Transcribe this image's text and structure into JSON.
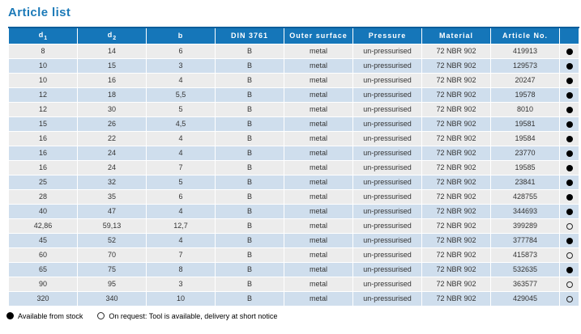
{
  "title": "Article list",
  "colors": {
    "title_text": "#1c7ab8",
    "header_bg": "#1576b9",
    "header_top_border": "#0c5e9b",
    "header_text": "#ffffff",
    "row_gray": "#ececec",
    "row_blue": "#cfdeed",
    "body_text": "#333333"
  },
  "table": {
    "headers": [
      {
        "label": "d",
        "sub": "1"
      },
      {
        "label": "d",
        "sub": "2"
      },
      {
        "label": "b"
      },
      {
        "label": "DIN 3761"
      },
      {
        "label": "Outer surface"
      },
      {
        "label": "Pressure"
      },
      {
        "label": "Material"
      },
      {
        "label": "Article No."
      },
      {
        "label": ""
      }
    ],
    "rows": [
      {
        "d1": "8",
        "d2": "14",
        "b": "6",
        "din": "B",
        "outer_surface": "metal",
        "pressure": "un-pressurised",
        "material": "72 NBR 902",
        "article_no": "419913",
        "availability": "stock"
      },
      {
        "d1": "10",
        "d2": "15",
        "b": "3",
        "din": "B",
        "outer_surface": "metal",
        "pressure": "un-pressurised",
        "material": "72 NBR 902",
        "article_no": "129573",
        "availability": "stock"
      },
      {
        "d1": "10",
        "d2": "16",
        "b": "4",
        "din": "B",
        "outer_surface": "metal",
        "pressure": "un-pressurised",
        "material": "72 NBR 902",
        "article_no": "20247",
        "availability": "stock"
      },
      {
        "d1": "12",
        "d2": "18",
        "b": "5,5",
        "din": "B",
        "outer_surface": "metal",
        "pressure": "un-pressurised",
        "material": "72 NBR 902",
        "article_no": "19578",
        "availability": "stock"
      },
      {
        "d1": "12",
        "d2": "30",
        "b": "5",
        "din": "B",
        "outer_surface": "metal",
        "pressure": "un-pressurised",
        "material": "72 NBR 902",
        "article_no": "8010",
        "availability": "stock"
      },
      {
        "d1": "15",
        "d2": "26",
        "b": "4,5",
        "din": "B",
        "outer_surface": "metal",
        "pressure": "un-pressurised",
        "material": "72 NBR 902",
        "article_no": "19581",
        "availability": "stock"
      },
      {
        "d1": "16",
        "d2": "22",
        "b": "4",
        "din": "B",
        "outer_surface": "metal",
        "pressure": "un-pressurised",
        "material": "72 NBR 902",
        "article_no": "19584",
        "availability": "stock"
      },
      {
        "d1": "16",
        "d2": "24",
        "b": "4",
        "din": "B",
        "outer_surface": "metal",
        "pressure": "un-pressurised",
        "material": "72 NBR 902",
        "article_no": "23770",
        "availability": "stock"
      },
      {
        "d1": "16",
        "d2": "24",
        "b": "7",
        "din": "B",
        "outer_surface": "metal",
        "pressure": "un-pressurised",
        "material": "72 NBR 902",
        "article_no": "19585",
        "availability": "stock"
      },
      {
        "d1": "25",
        "d2": "32",
        "b": "5",
        "din": "B",
        "outer_surface": "metal",
        "pressure": "un-pressurised",
        "material": "72 NBR 902",
        "article_no": "23841",
        "availability": "stock"
      },
      {
        "d1": "28",
        "d2": "35",
        "b": "6",
        "din": "B",
        "outer_surface": "metal",
        "pressure": "un-pressurised",
        "material": "72 NBR 902",
        "article_no": "428755",
        "availability": "stock"
      },
      {
        "d1": "40",
        "d2": "47",
        "b": "4",
        "din": "B",
        "outer_surface": "metal",
        "pressure": "un-pressurised",
        "material": "72 NBR 902",
        "article_no": "344693",
        "availability": "stock"
      },
      {
        "d1": "42,86",
        "d2": "59,13",
        "b": "12,7",
        "din": "B",
        "outer_surface": "metal",
        "pressure": "un-pressurised",
        "material": "72 NBR 902",
        "article_no": "399289",
        "availability": "request"
      },
      {
        "d1": "45",
        "d2": "52",
        "b": "4",
        "din": "B",
        "outer_surface": "metal",
        "pressure": "un-pressurised",
        "material": "72 NBR 902",
        "article_no": "377784",
        "availability": "stock"
      },
      {
        "d1": "60",
        "d2": "70",
        "b": "7",
        "din": "B",
        "outer_surface": "metal",
        "pressure": "un-pressurised",
        "material": "72 NBR 902",
        "article_no": "415873",
        "availability": "request"
      },
      {
        "d1": "65",
        "d2": "75",
        "b": "8",
        "din": "B",
        "outer_surface": "metal",
        "pressure": "un-pressurised",
        "material": "72 NBR 902",
        "article_no": "532635",
        "availability": "stock"
      },
      {
        "d1": "90",
        "d2": "95",
        "b": "3",
        "din": "B",
        "outer_surface": "metal",
        "pressure": "un-pressurised",
        "material": "72 NBR 902",
        "article_no": "363577",
        "availability": "request"
      },
      {
        "d1": "320",
        "d2": "340",
        "b": "10",
        "din": "B",
        "outer_surface": "metal",
        "pressure": "un-pressurised",
        "material": "72 NBR 902",
        "article_no": "429045",
        "availability": "request"
      }
    ]
  },
  "legend": {
    "stock_label": "Available from stock",
    "request_label": "On request: Tool is available, delivery at short notice"
  }
}
